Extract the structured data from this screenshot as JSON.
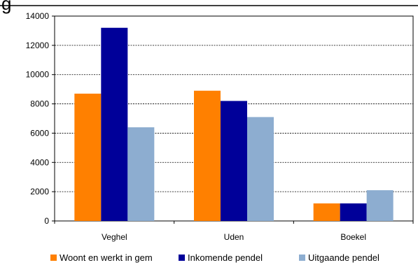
{
  "title_fragment": "g",
  "chart_data": {
    "type": "bar",
    "categories": [
      "Veghel",
      "Uden",
      "Boekel"
    ],
    "series": [
      {
        "name": "Woont en werkt in gem",
        "color": "#FF8000",
        "values": [
          8700,
          8900,
          1200
        ]
      },
      {
        "name": "Inkomende pendel",
        "color": "#000099",
        "values": [
          13200,
          8200,
          1200
        ]
      },
      {
        "name": "Uitgaande pendel",
        "color": "#8DADD0",
        "values": [
          6400,
          7100,
          2100
        ]
      }
    ],
    "ylim": [
      0,
      14000
    ],
    "yticks": [
      0,
      2000,
      4000,
      6000,
      8000,
      10000,
      12000,
      14000
    ],
    "grid": true,
    "legend_position": "bottom",
    "title": "",
    "xlabel": "",
    "ylabel": ""
  }
}
